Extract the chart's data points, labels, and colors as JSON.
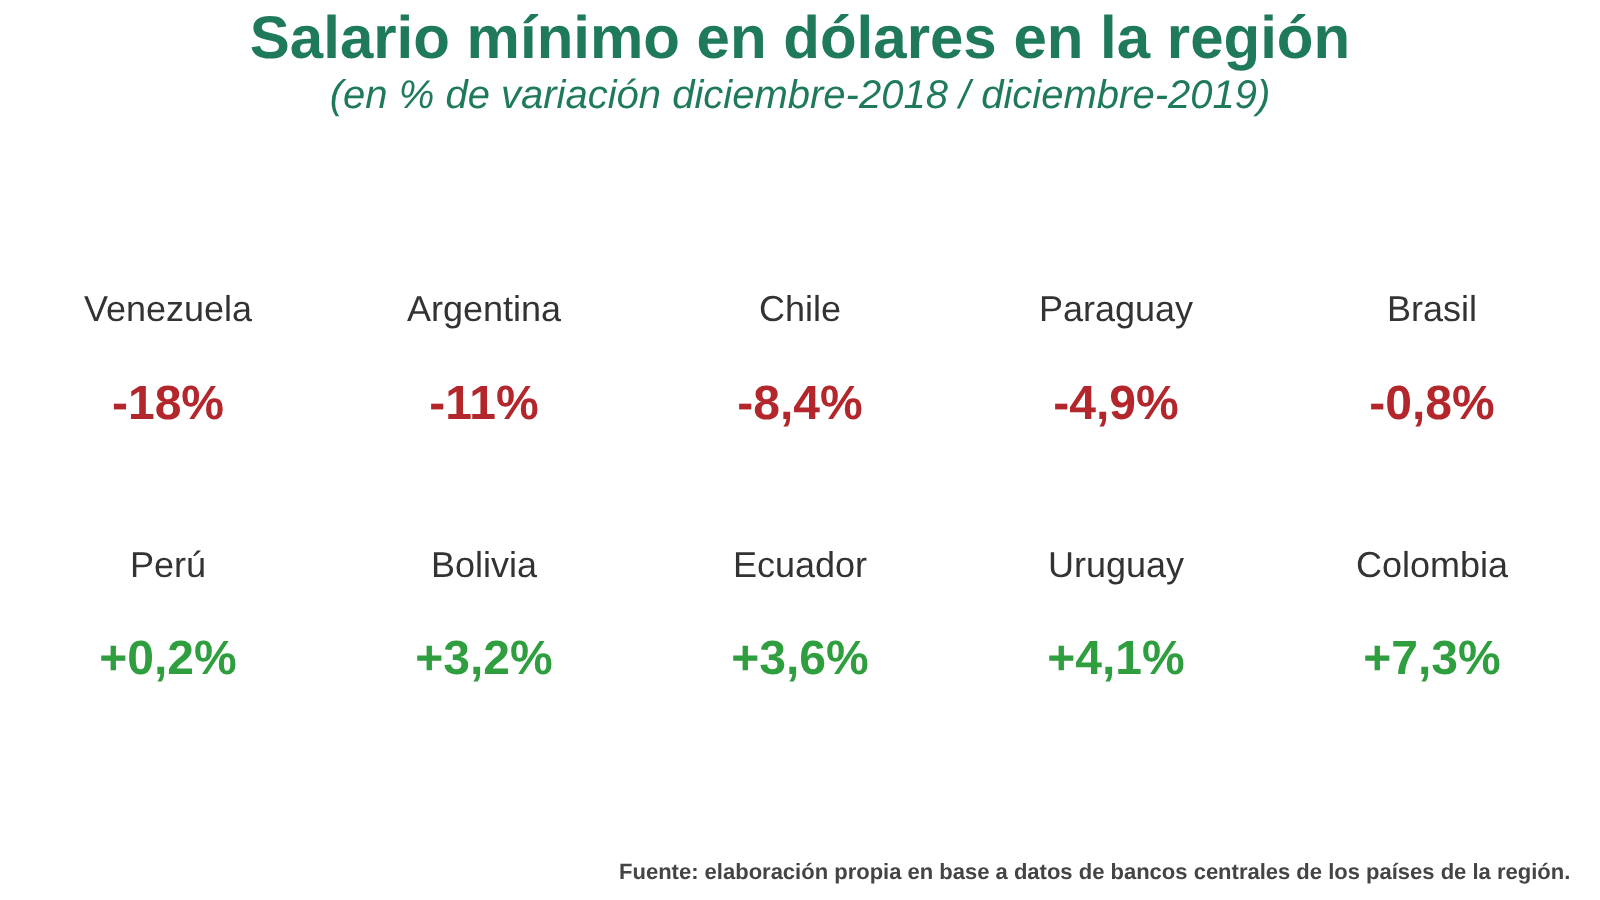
{
  "chart_data": {
    "type": "other",
    "title": "Salario mínimo en dólares en la región",
    "subtitle": "(en % de variación diciembre-2018 / diciembre-2019)",
    "categories": [
      "Venezuela",
      "Argentina",
      "Chile",
      "Paraguay",
      "Brasil",
      "Perú",
      "Bolivia",
      "Ecuador",
      "Uruguay",
      "Colombia"
    ],
    "values": [
      -18,
      -11,
      -8.4,
      -4.9,
      -0.8,
      0.2,
      3.2,
      3.6,
      4.1,
      7.3
    ],
    "value_labels": [
      "-18%",
      "-11%",
      "-8,4%",
      "-4,9%",
      "-0,8%",
      "+0,2%",
      "+3,2%",
      "+3,6%",
      "+4,1%",
      "+7,3%"
    ],
    "colors": [
      "#b3262b",
      "#b3262b",
      "#b3262b",
      "#b3262b",
      "#b3262b",
      "#2e9e3e",
      "#2e9e3e",
      "#2e9e3e",
      "#2e9e3e",
      "#2e9e3e"
    ],
    "annotations": [
      "Fuente: elaboración propia en base a datos de bancos centrales de los países de la región."
    ]
  }
}
